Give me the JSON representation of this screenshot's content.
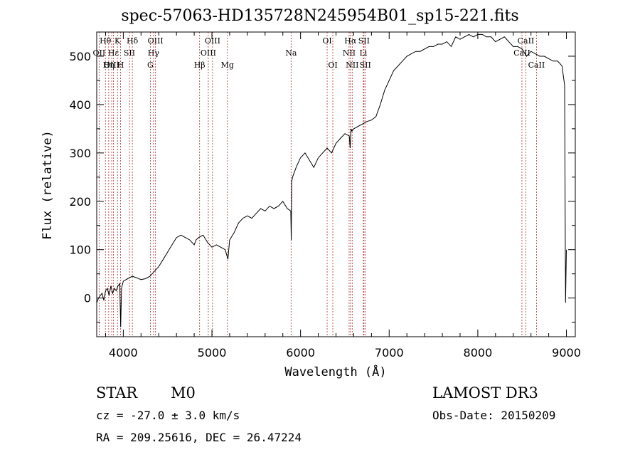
{
  "chart_data": {
    "type": "line",
    "title": "spec-57063-HD135728N245954B01_sp15-221.fits",
    "xlabel": "Wavelength (Å)",
    "ylabel": "Flux (relative)",
    "xlim": [
      3700,
      9100
    ],
    "ylim": [
      -80,
      550
    ],
    "xticks": [
      4000,
      5000,
      6000,
      7000,
      8000,
      9000
    ],
    "yticks": [
      0,
      100,
      200,
      300,
      400,
      500
    ],
    "grid": false,
    "series": [
      {
        "x": [
          3700,
          3720,
          3740,
          3760,
          3780,
          3800,
          3820,
          3840,
          3860,
          3880,
          3900,
          3920,
          3940,
          3960,
          3970,
          3980,
          4000,
          4050,
          4100,
          4150,
          4200,
          4250,
          4300,
          4350,
          4400,
          4450,
          4500,
          4550,
          4600,
          4650,
          4700,
          4750,
          4800,
          4820,
          4850,
          4900,
          4950,
          5000,
          5050,
          5100,
          5150,
          5180,
          5200,
          5250,
          5300,
          5350,
          5400,
          5450,
          5500,
          5550,
          5600,
          5650,
          5700,
          5750,
          5800,
          5850,
          5890,
          5895,
          5900,
          5910,
          5950,
          6000,
          6050,
          6100,
          6150,
          6200,
          6250,
          6300,
          6350,
          6400,
          6450,
          6500,
          6550,
          6560,
          6570,
          6580,
          6600,
          6650,
          6700,
          6750,
          6800,
          6850,
          6900,
          6950,
          7000,
          7050,
          7100,
          7150,
          7200,
          7250,
          7300,
          7350,
          7400,
          7450,
          7500,
          7550,
          7600,
          7650,
          7700,
          7750,
          7800,
          7850,
          7900,
          7950,
          8000,
          8050,
          8100,
          8150,
          8200,
          8250,
          8300,
          8350,
          8400,
          8450,
          8500,
          8550,
          8600,
          8650,
          8700,
          8750,
          8800,
          8850,
          8900,
          8950,
          8980,
          8990,
          9000
        ],
        "y": [
          -10,
          0,
          5,
          10,
          -5,
          15,
          20,
          5,
          25,
          10,
          20,
          15,
          25,
          30,
          -60,
          20,
          35,
          40,
          45,
          42,
          38,
          40,
          45,
          55,
          65,
          80,
          95,
          110,
          125,
          130,
          125,
          120,
          110,
          120,
          125,
          130,
          115,
          105,
          110,
          105,
          100,
          80,
          120,
          135,
          155,
          165,
          170,
          165,
          175,
          185,
          180,
          190,
          185,
          190,
          200,
          185,
          180,
          120,
          240,
          250,
          270,
          290,
          300,
          285,
          270,
          290,
          300,
          310,
          300,
          320,
          330,
          340,
          335,
          310,
          350,
          345,
          350,
          355,
          360,
          365,
          368,
          375,
          400,
          430,
          450,
          470,
          480,
          490,
          500,
          505,
          510,
          510,
          515,
          520,
          520,
          525,
          525,
          530,
          520,
          540,
          535,
          540,
          545,
          540,
          545,
          545,
          540,
          540,
          530,
          535,
          540,
          530,
          520,
          520,
          515,
          500,
          510,
          505,
          500,
          500,
          495,
          490,
          490,
          480,
          440,
          -10,
          100
        ]
      }
    ],
    "lines": [
      {
        "label": "Hθ",
        "x": 3798,
        "row": 1
      },
      {
        "label": "OII",
        "x": 3727,
        "row": 2
      },
      {
        "label": "OIII",
        "x": 3869,
        "row": 3
      },
      {
        "label": "K",
        "x": 3934,
        "row": 1
      },
      {
        "label": "Hε",
        "x": 3889,
        "row": 2
      },
      {
        "label": "Hη",
        "x": 3835,
        "row": 3
      },
      {
        "label": "H",
        "x": 3969,
        "row": 3
      },
      {
        "label": "Hδ",
        "x": 4102,
        "row": 1
      },
      {
        "label": "SII",
        "x": 4069,
        "row": 2
      },
      {
        "label": "OIII",
        "x": 4363,
        "row": 1
      },
      {
        "label": "Hγ",
        "x": 4341,
        "row": 2
      },
      {
        "label": "G",
        "x": 4305,
        "row": 3
      },
      {
        "label": "Hβ",
        "x": 4861,
        "row": 3
      },
      {
        "label": "OIII",
        "x": 5007,
        "row": 1
      },
      {
        "label": "OIII",
        "x": 4959,
        "row": 2
      },
      {
        "label": "Mg",
        "x": 5175,
        "row": 3
      },
      {
        "label": "Na",
        "x": 5893,
        "row": 2
      },
      {
        "label": "OI",
        "x": 6300,
        "row": 1
      },
      {
        "label": "OI",
        "x": 6364,
        "row": 3
      },
      {
        "label": "Hα",
        "x": 6563,
        "row": 1
      },
      {
        "label": "SII",
        "x": 6716,
        "row": 1
      },
      {
        "label": "NII",
        "x": 6548,
        "row": 2
      },
      {
        "label": "Li",
        "x": 6708,
        "row": 2
      },
      {
        "label": "NII",
        "x": 6583,
        "row": 3
      },
      {
        "label": "SII",
        "x": 6731,
        "row": 3
      },
      {
        "label": "CaII",
        "x": 8542,
        "row": 1
      },
      {
        "label": "CaII",
        "x": 8498,
        "row": 2
      },
      {
        "label": "CaII",
        "x": 8662,
        "row": 3
      }
    ]
  },
  "info": {
    "object_class": "STAR",
    "subclass": "M0",
    "survey": "LAMOST DR3",
    "cz": "cz = -27.0 ± 3.0 km/s",
    "obs_date": "Obs-Date: 20150209",
    "coords": "RA = 209.25616, DEC =  26.47224"
  },
  "colors": {
    "axis": "#000000",
    "spectrum": "#000000",
    "line_marker": "#b03030"
  }
}
